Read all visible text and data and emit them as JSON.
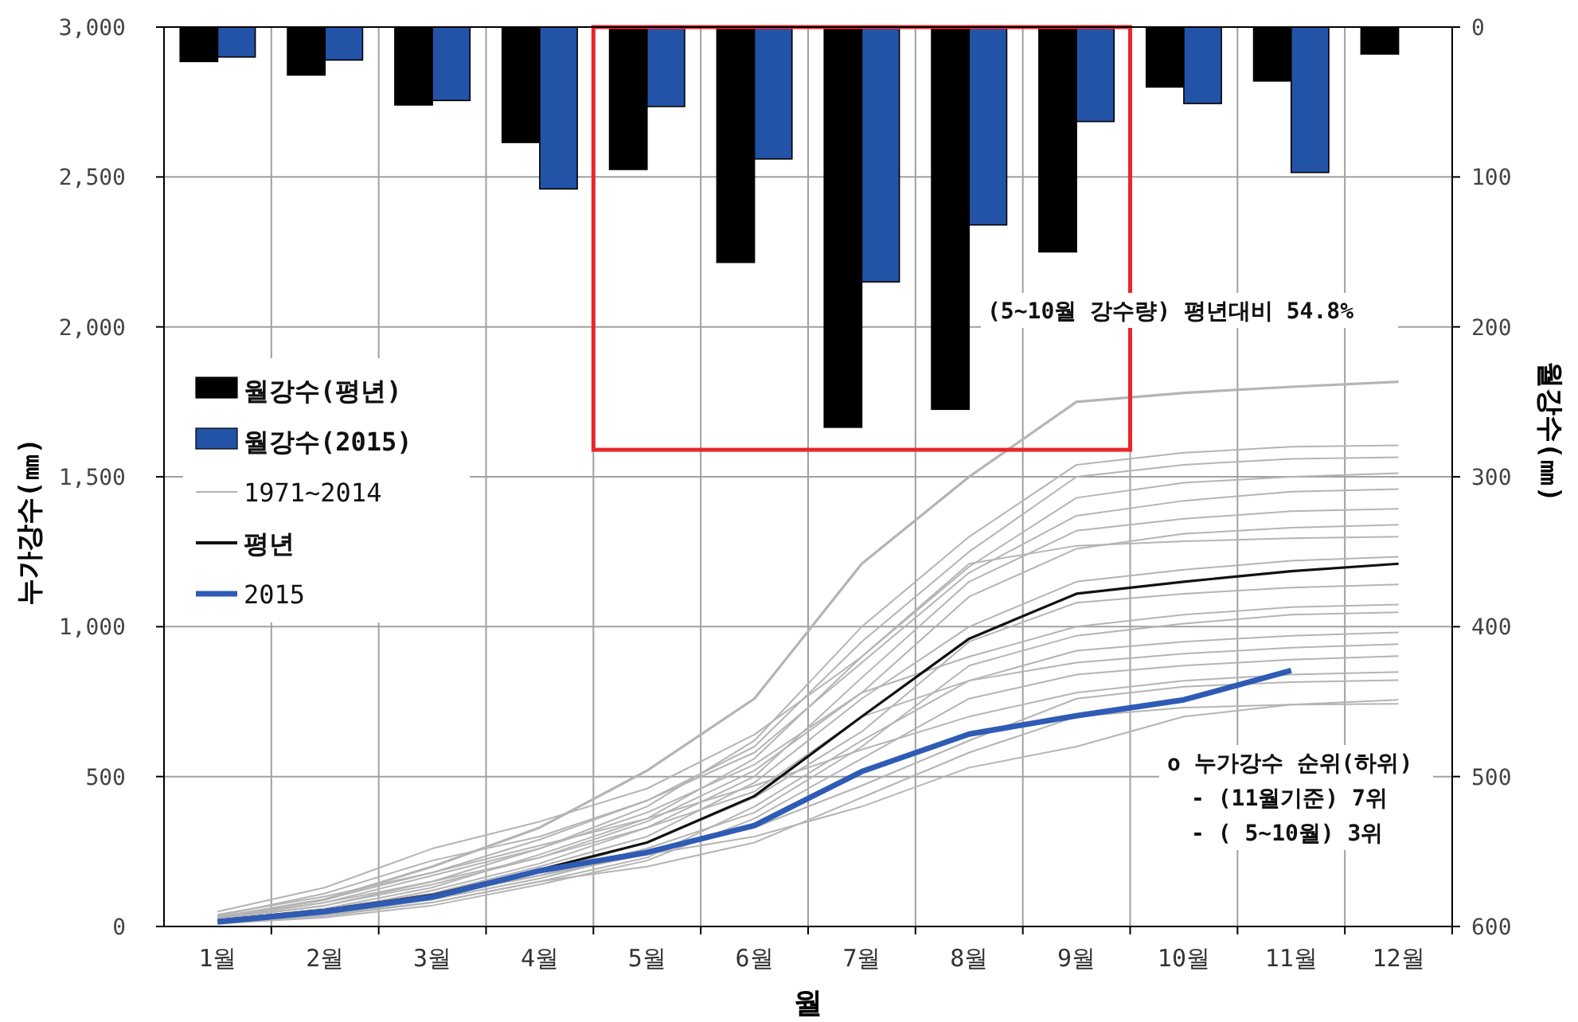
{
  "chart_data": {
    "type": "line",
    "xlabel": "월",
    "ylabel": "누가강수(㎜)",
    "y2label": "월강수(㎜)",
    "categories": [
      "1월",
      "2월",
      "3월",
      "4월",
      "5월",
      "6월",
      "7월",
      "8월",
      "9월",
      "10월",
      "11월",
      "12월"
    ],
    "ylim": [
      0,
      3000
    ],
    "yticks": [
      0,
      500,
      {
        "value": 1000,
        "label": "1,000"
      },
      {
        "value": 1500,
        "label": "1,500"
      },
      {
        "value": 2000,
        "label": "2,000"
      },
      {
        "value": 2500,
        "label": "2,500"
      },
      {
        "value": 3000,
        "label": "3,000"
      }
    ],
    "y2lim": [
      600,
      0
    ],
    "y2ticks": [
      600,
      500,
      400,
      300,
      200,
      100,
      0
    ],
    "grid": true,
    "legend": "left",
    "marker": "none",
    "line_style": "solid",
    "annotations": [
      "(5~10월 강수량) 평년대비 54.8%",
      "o 누가강수 순위(하위)",
      "- (11월기준) 7위",
      "- ( 5~10월) 3위"
    ],
    "series": [
      {
        "type": "bar",
        "axis": "y2",
        "name": "월강수(평년)",
        "color": "#000000",
        "values": [
          23,
          32,
          52,
          77,
          95,
          157,
          267,
          255,
          150,
          40,
          36,
          18
        ]
      },
      {
        "type": "bar",
        "axis": "y2",
        "name": "월강수(2015)",
        "color": "#2353a6",
        "values": [
          20,
          22,
          49,
          108,
          53,
          88,
          170,
          132,
          63,
          51,
          97,
          null
        ]
      },
      {
        "name": "1971~2014",
        "color": "#b4b4b4",
        "values": [
          30,
          90,
          200,
          330,
          520,
          760,
          1210,
          1500,
          1750,
          1780,
          1800,
          1817
        ]
      },
      {
        "color": "#b4b4b4",
        "values": [
          25,
          70,
          150,
          260,
          400,
          620,
          1000,
          1300,
          1540,
          1580,
          1600,
          1605
        ]
      },
      {
        "color": "#b4b4b4",
        "values": [
          40,
          100,
          180,
          290,
          420,
          600,
          950,
          1250,
          1500,
          1540,
          1560,
          1565
        ]
      },
      {
        "color": "#b4b4b4",
        "values": [
          20,
          60,
          130,
          240,
          360,
          560,
          900,
          1200,
          1430,
          1480,
          1500,
          1512
        ]
      },
      {
        "color": "#b4b4b4",
        "values": [
          35,
          110,
          220,
          300,
          420,
          580,
          880,
          1180,
          1370,
          1420,
          1450,
          1459
        ]
      },
      {
        "color": "#b4b4b4",
        "values": [
          15,
          50,
          120,
          210,
          330,
          500,
          830,
          1150,
          1320,
          1360,
          1385,
          1393
        ]
      },
      {
        "color": "#b4b4b4",
        "values": [
          25,
          80,
          170,
          260,
          380,
          540,
          780,
          1100,
          1260,
          1310,
          1330,
          1340
        ]
      },
      {
        "color": "#b4b4b4",
        "values": [
          50,
          130,
          260,
          350,
          460,
          640,
          900,
          1210,
          1270,
          1285,
          1295,
          1300
        ]
      },
      {
        "color": "#b4b4b4",
        "values": [
          20,
          60,
          110,
          200,
          300,
          480,
          760,
          1000,
          1150,
          1190,
          1220,
          1233
        ]
      },
      {
        "color": "#b4b4b4",
        "values": [
          10,
          40,
          90,
          180,
          280,
          430,
          650,
          950,
          1080,
          1110,
          1130,
          1141
        ]
      },
      {
        "color": "#b4b4b4",
        "values": [
          30,
          80,
          150,
          230,
          350,
          520,
          780,
          900,
          1000,
          1040,
          1065,
          1074
        ]
      },
      {
        "color": "#b4b4b4",
        "values": [
          20,
          50,
          100,
          170,
          260,
          380,
          600,
          870,
          970,
          1010,
          1040,
          1048
        ]
      },
      {
        "color": "#b4b4b4",
        "values": [
          15,
          40,
          80,
          150,
          230,
          400,
          620,
          820,
          920,
          950,
          970,
          981
        ]
      },
      {
        "color": "#b4b4b4",
        "values": [
          25,
          70,
          140,
          230,
          330,
          450,
          700,
          820,
          880,
          910,
          930,
          942
        ]
      },
      {
        "color": "#b4b4b4",
        "values": [
          10,
          30,
          70,
          140,
          220,
          360,
          560,
          760,
          840,
          870,
          890,
          902
        ]
      },
      {
        "color": "#b4b4b4",
        "values": [
          30,
          90,
          180,
          270,
          360,
          470,
          590,
          700,
          780,
          820,
          840,
          849
        ]
      },
      {
        "color": "#b4b4b4",
        "values": [
          15,
          45,
          90,
          160,
          250,
          330,
          470,
          620,
          760,
          800,
          815,
          822
        ]
      },
      {
        "color": "#b4b4b4",
        "values": [
          20,
          55,
          100,
          170,
          240,
          300,
          400,
          530,
          600,
          700,
          740,
          756
        ]
      },
      {
        "color": "#b4b4b4",
        "values": [
          10,
          35,
          80,
          150,
          200,
          280,
          430,
          580,
          700,
          730,
          740,
          743
        ]
      },
      {
        "name": "평년",
        "color": "#111111",
        "values": [
          20,
          55,
          105,
          190,
          280,
          435,
          700,
          960,
          1110,
          1150,
          1185,
          1210
        ]
      },
      {
        "name": "2015",
        "color": "#2e5bb5",
        "values": [
          15,
          50,
          98,
          186,
          247,
          337,
          517,
          642,
          703,
          756,
          854,
          null
        ]
      }
    ]
  }
}
